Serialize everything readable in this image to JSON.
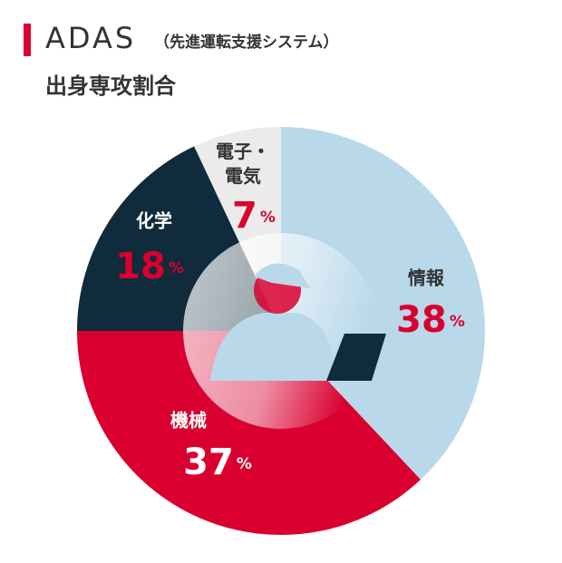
{
  "chart_data": {
    "type": "donut",
    "title": "ADAS",
    "title_note": "（先進運転支援システム）",
    "subtitle": "出身専攻割合",
    "categories": [
      "情報",
      "機械",
      "化学",
      "電子・電気"
    ],
    "values": [
      38,
      37,
      18,
      7
    ],
    "value_labels": [
      "38%",
      "37%",
      "18%",
      "7%"
    ],
    "colors": [
      "#b9d8ea",
      "#d9002f",
      "#0f2b3c",
      "#ebebeb"
    ]
  }
}
